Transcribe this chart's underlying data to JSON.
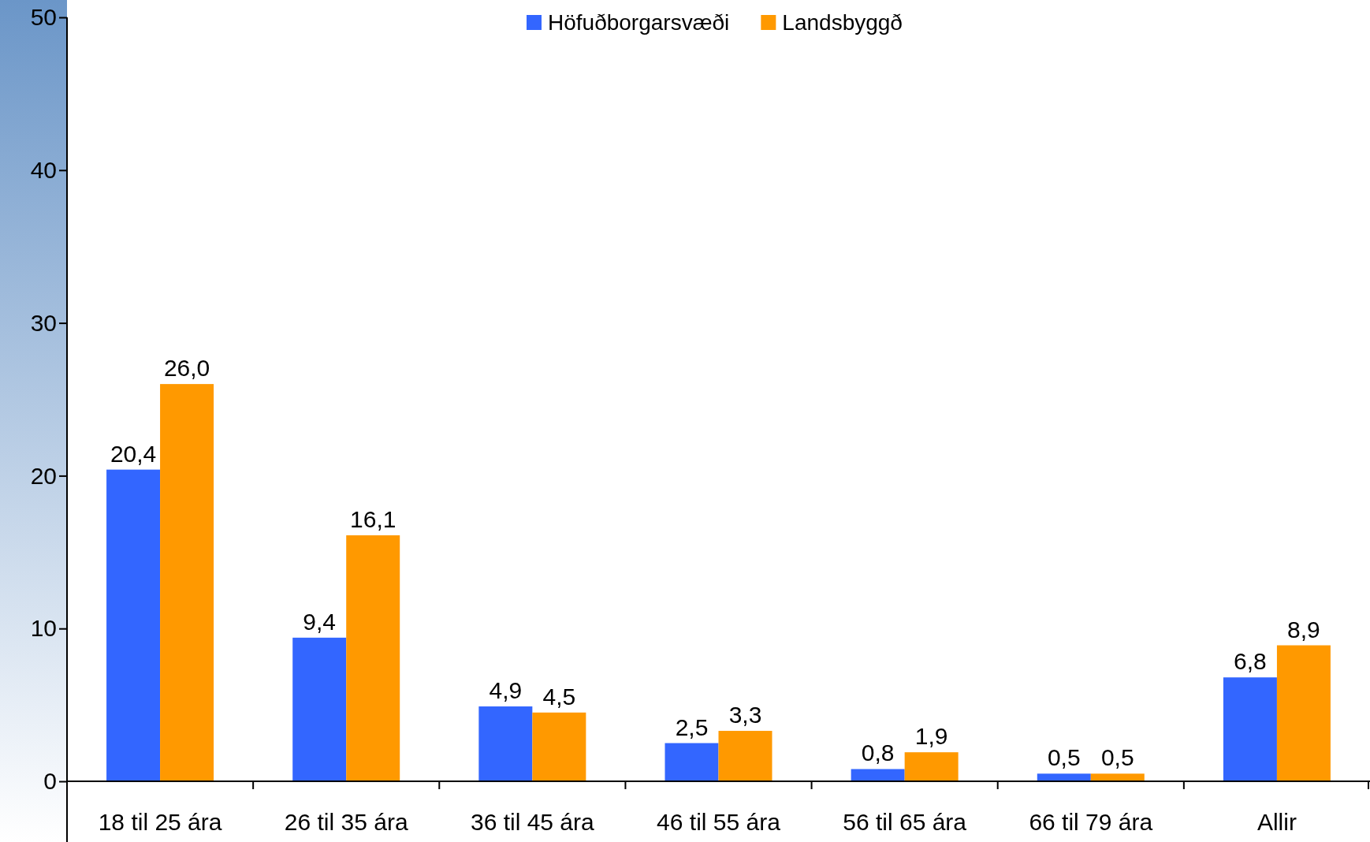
{
  "chart_data": {
    "type": "bar",
    "categories": [
      "18 til 25 ára",
      "26 til 35 ára",
      "36 til 45 ára",
      "46 til 55 ára",
      "56 til 65 ára",
      "66 til 79 ára",
      "Allir"
    ],
    "series": [
      {
        "name": "Höfuðborgarsvæði",
        "color": "#3366ff",
        "values": [
          20.4,
          9.4,
          4.9,
          2.5,
          0.8,
          0.5,
          6.8
        ],
        "value_labels": [
          "20,4",
          "9,4",
          "4,9",
          "2,5",
          "0,8",
          "0,5",
          "6,8"
        ]
      },
      {
        "name": "Landsbyggð",
        "color": "#ff9900",
        "values": [
          26.0,
          16.1,
          4.5,
          3.3,
          1.9,
          0.5,
          8.9
        ],
        "value_labels": [
          "26,0",
          "16,1",
          "4,5",
          "3,3",
          "1,9",
          "0,5",
          "8,9"
        ]
      }
    ],
    "ylim": [
      0,
      50
    ],
    "yticks": [
      0,
      10,
      20,
      30,
      40,
      50
    ],
    "legend": "top",
    "grid": false
  }
}
